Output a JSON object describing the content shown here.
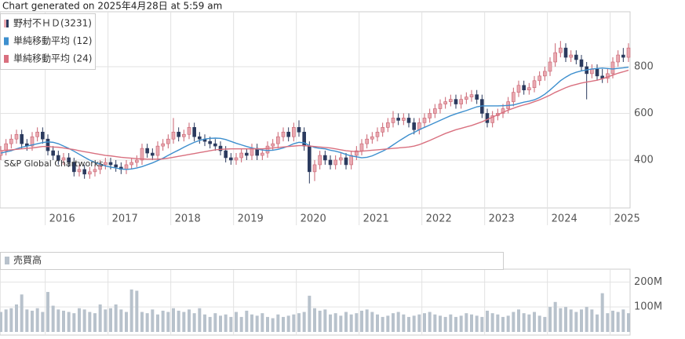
{
  "header": {
    "text": "Chart generated on 2025年4月28日 at 5:59 am"
  },
  "chart_data": [
    {
      "type": "candlestick",
      "annotation": "S&P Global Chartworks",
      "ylim": [
        195,
        1035
      ],
      "yticks": [
        400,
        600,
        800
      ],
      "grid": true,
      "up_color": "#e9a9b1",
      "down_color": "#2b3a5e",
      "categories": [
        null,
        null,
        null,
        null,
        null,
        null,
        null,
        null,
        null,
        "2016",
        null,
        null,
        null,
        null,
        null,
        null,
        null,
        null,
        null,
        null,
        null,
        "2017",
        null,
        null,
        null,
        null,
        null,
        null,
        null,
        null,
        null,
        null,
        null,
        "2018",
        null,
        null,
        null,
        null,
        null,
        null,
        null,
        null,
        null,
        null,
        null,
        "2019",
        null,
        null,
        null,
        null,
        null,
        null,
        null,
        null,
        null,
        null,
        null,
        "2020",
        null,
        null,
        null,
        null,
        null,
        null,
        null,
        null,
        null,
        null,
        null,
        "2021",
        null,
        null,
        null,
        null,
        null,
        null,
        null,
        null,
        null,
        null,
        null,
        "2022",
        null,
        null,
        null,
        null,
        null,
        null,
        null,
        null,
        null,
        null,
        null,
        "2023",
        null,
        null,
        null,
        null,
        null,
        null,
        null,
        null,
        null,
        null,
        null,
        "2024",
        null,
        null,
        null,
        null,
        null,
        null,
        null,
        null,
        null,
        null,
        null,
        "2025",
        null,
        null,
        null
      ],
      "candles": {
        "name": "野村不ＨＤ(3231)",
        "open": [
          420,
          440,
          470,
          490,
          510,
          470,
          460,
          500,
          520,
          490,
          440,
          420,
          400,
          410,
          390,
          350,
          360,
          340,
          350,
          360,
          380,
          390,
          380,
          370,
          360,
          380,
          390,
          400,
          450,
          430,
          420,
          460,
          470,
          490,
          520,
          500,
          510,
          540,
          500,
          490,
          480,
          470,
          460,
          440,
          410,
          400,
          410,
          430,
          420,
          450,
          420,
          430,
          460,
          470,
          500,
          520,
          500,
          540,
          520,
          460,
          350,
          380,
          420,
          400,
          380,
          400,
          410,
          380,
          420,
          440,
          470,
          490,
          500,
          520,
          540,
          560,
          580,
          570,
          580,
          560,
          530,
          560,
          580,
          600,
          620,
          640,
          650,
          660,
          640,
          660,
          670,
          680,
          660,
          600,
          560,
          590,
          600,
          620,
          650,
          690,
          720,
          700,
          710,
          740,
          760,
          780,
          820,
          860,
          880,
          840,
          850,
          830,
          800,
          770,
          790,
          760,
          750,
          770,
          820,
          850,
          840
        ],
        "high": [
          460,
          490,
          510,
          530,
          530,
          490,
          520,
          540,
          540,
          510,
          460,
          440,
          430,
          430,
          410,
          380,
          380,
          370,
          380,
          400,
          410,
          410,
          400,
          390,
          400,
          410,
          420,
          470,
          470,
          450,
          480,
          490,
          510,
          580,
          540,
          530,
          560,
          560,
          520,
          510,
          500,
          490,
          480,
          460,
          430,
          430,
          450,
          450,
          470,
          470,
          450,
          480,
          490,
          520,
          540,
          540,
          560,
          570,
          540,
          480,
          400,
          440,
          440,
          420,
          420,
          430,
          430,
          440,
          460,
          490,
          510,
          520,
          540,
          560,
          580,
          610,
          600,
          600,
          600,
          580,
          580,
          600,
          620,
          640,
          660,
          670,
          680,
          680,
          680,
          690,
          700,
          700,
          680,
          620,
          610,
          620,
          640,
          670,
          710,
          740,
          740,
          730,
          760,
          780,
          800,
          840,
          900,
          910,
          900,
          870,
          870,
          850,
          820,
          810,
          810,
          790,
          790,
          840,
          870,
          880,
          900
        ],
        "low": [
          400,
          420,
          450,
          470,
          450,
          440,
          440,
          480,
          470,
          420,
          400,
          380,
          380,
          370,
          330,
          330,
          320,
          320,
          330,
          340,
          360,
          360,
          350,
          340,
          340,
          360,
          370,
          380,
          410,
          400,
          400,
          440,
          450,
          470,
          480,
          480,
          490,
          480,
          470,
          460,
          450,
          440,
          420,
          390,
          380,
          380,
          390,
          400,
          400,
          400,
          400,
          410,
          440,
          450,
          480,
          480,
          480,
          500,
          440,
          300,
          310,
          360,
          380,
          360,
          360,
          380,
          360,
          360,
          400,
          420,
          450,
          470,
          480,
          500,
          520,
          540,
          550,
          550,
          540,
          510,
          510,
          540,
          560,
          580,
          600,
          620,
          630,
          620,
          620,
          640,
          650,
          640,
          580,
          540,
          540,
          570,
          580,
          600,
          630,
          670,
          680,
          680,
          690,
          720,
          740,
          760,
          800,
          840,
          820,
          820,
          810,
          780,
          660,
          750,
          740,
          730,
          730,
          750,
          800,
          820,
          820
        ],
        "close": [
          440,
          470,
          490,
          510,
          470,
          460,
          500,
          520,
          490,
          440,
          420,
          400,
          410,
          390,
          350,
          360,
          340,
          350,
          360,
          380,
          390,
          380,
          370,
          360,
          380,
          390,
          400,
          450,
          430,
          420,
          460,
          470,
          490,
          520,
          500,
          510,
          540,
          500,
          490,
          480,
          470,
          460,
          440,
          410,
          400,
          410,
          430,
          420,
          450,
          420,
          430,
          460,
          470,
          500,
          520,
          500,
          540,
          520,
          460,
          350,
          380,
          420,
          400,
          380,
          400,
          410,
          380,
          420,
          440,
          470,
          490,
          500,
          520,
          540,
          560,
          580,
          570,
          580,
          560,
          530,
          560,
          580,
          600,
          620,
          640,
          650,
          660,
          640,
          660,
          670,
          680,
          660,
          600,
          560,
          590,
          600,
          620,
          650,
          690,
          720,
          700,
          710,
          740,
          760,
          780,
          820,
          860,
          880,
          840,
          850,
          830,
          800,
          770,
          790,
          760,
          750,
          770,
          820,
          850,
          840,
          880
        ]
      },
      "series": [
        {
          "name": "単純移動平均 (12)",
          "color": "#3d8fce",
          "values": [
            430,
            435,
            440,
            448,
            455,
            460,
            465,
            470,
            475,
            478,
            476,
            470,
            460,
            450,
            438,
            425,
            412,
            400,
            390,
            382,
            375,
            370,
            366,
            362,
            360,
            362,
            366,
            372,
            380,
            388,
            398,
            408,
            420,
            432,
            443,
            455,
            466,
            476,
            484,
            490,
            493,
            494,
            493,
            488,
            480,
            472,
            465,
            458,
            452,
            447,
            443,
            441,
            442,
            446,
            452,
            460,
            470,
            476,
            474,
            462,
            454,
            450,
            448,
            442,
            438,
            432,
            424,
            418,
            414,
            410,
            412,
            418,
            428,
            438,
            450,
            465,
            480,
            494,
            508,
            518,
            530,
            540,
            550,
            560,
            570,
            580,
            590,
            598,
            605,
            612,
            620,
            628,
            632,
            632,
            632,
            632,
            633,
            634,
            636,
            642,
            648,
            652,
            658,
            668,
            682,
            700,
            720,
            740,
            755,
            768,
            776,
            782,
            786,
            790,
            792,
            794,
            792,
            790,
            793,
            795,
            798
          ]
        },
        {
          "name": "単純移動平均 (24)",
          "color": "#d9707f",
          "values": [
            440,
            442,
            444,
            446,
            448,
            450,
            452,
            455,
            458,
            458,
            456,
            455,
            452,
            448,
            445,
            440,
            436,
            432,
            428,
            424,
            420,
            418,
            415,
            412,
            410,
            408,
            406,
            405,
            404,
            404,
            404,
            405,
            408,
            412,
            416,
            420,
            424,
            428,
            432,
            436,
            440,
            444,
            446,
            447,
            448,
            448,
            448,
            448,
            448,
            448,
            448,
            450,
            452,
            454,
            456,
            458,
            460,
            462,
            462,
            460,
            458,
            456,
            454,
            452,
            448,
            444,
            440,
            438,
            436,
            438,
            440,
            442,
            444,
            446,
            448,
            450,
            452,
            454,
            456,
            460,
            466,
            475,
            484,
            494,
            504,
            514,
            522,
            530,
            536,
            542,
            548,
            556,
            564,
            574,
            584,
            594,
            604,
            614,
            622,
            630,
            636,
            642,
            650,
            658,
            668,
            678,
            690,
            700,
            710,
            718,
            724,
            730,
            734,
            738,
            742,
            748,
            756,
            764,
            772,
            778,
            785
          ]
        }
      ]
    },
    {
      "type": "bar",
      "name": "売買高",
      "color": "#b8c2cc",
      "ylim": [
        0,
        245
      ],
      "yticks": [
        {
          "value": 100,
          "label": "100M"
        },
        {
          "value": 200,
          "label": "200M"
        }
      ],
      "values": [
        80,
        90,
        95,
        110,
        150,
        90,
        85,
        95,
        80,
        160,
        105,
        90,
        85,
        80,
        75,
        95,
        90,
        80,
        75,
        110,
        90,
        95,
        110,
        90,
        80,
        170,
        165,
        80,
        75,
        90,
        70,
        85,
        80,
        95,
        85,
        80,
        90,
        75,
        95,
        70,
        60,
        75,
        65,
        70,
        60,
        80,
        60,
        85,
        70,
        65,
        75,
        60,
        55,
        70,
        60,
        65,
        70,
        75,
        80,
        145,
        95,
        85,
        90,
        70,
        75,
        65,
        80,
        70,
        75,
        85,
        90,
        80,
        70,
        60,
        65,
        75,
        80,
        70,
        60,
        65,
        70,
        75,
        80,
        70,
        65,
        60,
        70,
        60,
        65,
        75,
        70,
        65,
        60,
        85,
        75,
        70,
        60,
        65,
        80,
        90,
        75,
        70,
        80,
        65,
        60,
        100,
        120,
        95,
        100,
        90,
        80,
        90,
        100,
        90,
        70,
        155,
        75,
        85,
        80,
        90,
        75
      ]
    }
  ]
}
